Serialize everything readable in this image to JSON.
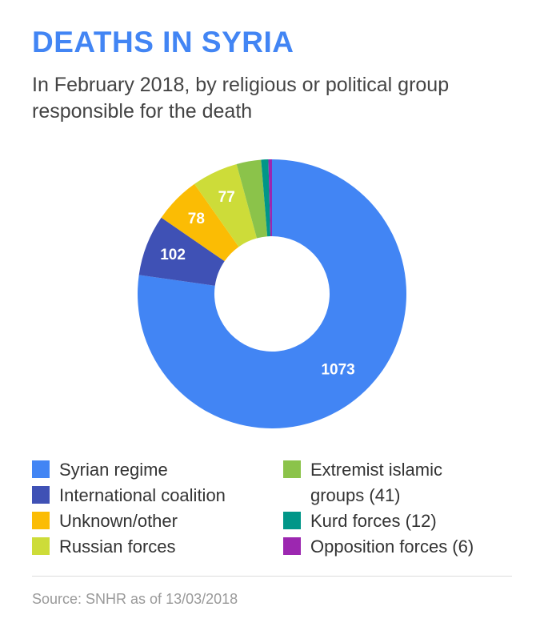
{
  "header": {
    "title": "DEATHS IN SYRIA",
    "subtitle": "In February 2018, by religious or political group responsible for the death"
  },
  "chart_data": {
    "type": "pie",
    "donut": true,
    "categories": [
      "Syrian regime",
      "International coalition",
      "Unknown/other",
      "Russian forces",
      "Extremist islamic groups",
      "Kurd forces",
      "Opposition forces"
    ],
    "values": [
      1073,
      102,
      78,
      77,
      41,
      12,
      6
    ],
    "data_labels": [
      "1073",
      "102",
      "78",
      "77",
      "",
      "",
      ""
    ],
    "colors": [
      "#4285f4",
      "#3f51b5",
      "#fbbc04",
      "#cddc39",
      "#8bc34a",
      "#009688",
      "#9c27b0"
    ],
    "legend_position": "bottom",
    "title": "DEATHS IN SYRIA",
    "xlabel": "",
    "ylabel": ""
  },
  "legend": {
    "items": [
      {
        "label": "Syrian regime",
        "color": "#4285f4"
      },
      {
        "label": "International coalition",
        "color": "#3f51b5"
      },
      {
        "label": "Unknown/other",
        "color": "#fbbc04"
      },
      {
        "label": "Russian forces",
        "color": "#cddc39"
      },
      {
        "label": "Extremist islamic\ngroups (41)",
        "color": "#8bc34a"
      },
      {
        "label": "Kurd forces (12)",
        "color": "#009688"
      },
      {
        "label": "Opposition forces (6)",
        "color": "#9c27b0"
      }
    ]
  },
  "footer": {
    "source": "Source: SNHR as of 13/03/2018"
  }
}
